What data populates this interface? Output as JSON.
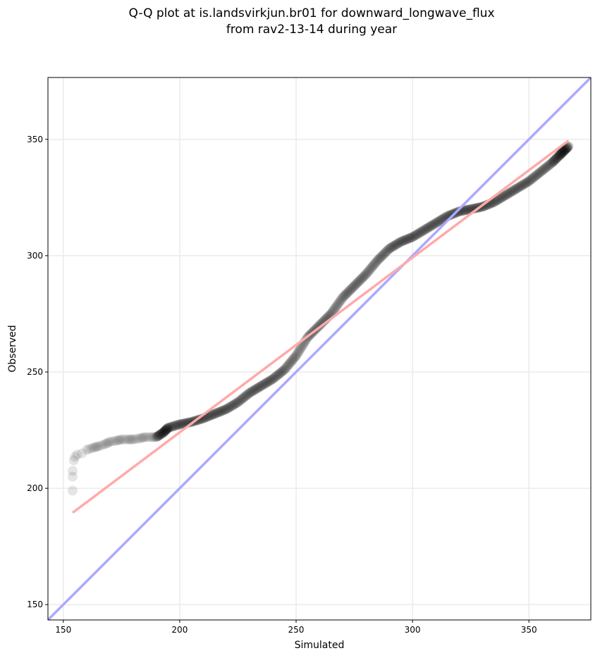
{
  "chart_data": {
    "type": "scatter",
    "title_line1": "Q-Q plot at is.landsvirkjun.br01 for downward_longwave_flux",
    "title_line2": "from rav2-13-14 during year",
    "xlabel": "Simulated",
    "ylabel": "Observed",
    "xlim": [
      143.4,
      376.6
    ],
    "ylim": [
      143.4,
      376.6
    ],
    "xticks": [
      150,
      200,
      250,
      300,
      350
    ],
    "yticks": [
      150,
      200,
      250,
      300,
      350
    ],
    "grid": true,
    "points": {
      "color": "#000000",
      "alpha": 0.1,
      "x": [
        154,
        154,
        154,
        154.5,
        155,
        156,
        158,
        160,
        163,
        165,
        168,
        170,
        173,
        175,
        178,
        180,
        183,
        185,
        188,
        190,
        193,
        195,
        200,
        205,
        210,
        215,
        220,
        225,
        230,
        235,
        240,
        245,
        250,
        255,
        260,
        265,
        270,
        275,
        280,
        285,
        290,
        295,
        300,
        305,
        310,
        315,
        320,
        325,
        330,
        335,
        340,
        345,
        350,
        355,
        360,
        363,
        365,
        367
      ],
      "y": [
        199,
        205,
        207.5,
        212,
        213.5,
        214.5,
        215,
        216.5,
        217.5,
        218,
        219,
        220,
        220.5,
        221,
        221,
        221,
        221.5,
        222,
        222,
        222,
        224,
        226,
        227.5,
        228.5,
        230,
        232,
        234,
        237,
        241,
        244,
        247,
        251,
        257,
        265,
        270,
        275,
        282,
        287,
        292,
        298,
        303,
        306,
        308,
        311,
        314,
        317,
        319,
        320,
        321,
        323,
        326,
        329,
        332,
        336,
        340,
        343,
        345,
        347
      ]
    },
    "reference_line": {
      "name": "1:1 line",
      "color": "#aaaaff",
      "x": [
        143.4,
        376.6
      ],
      "y": [
        143.4,
        376.6
      ]
    },
    "fit_line": {
      "name": "fit",
      "color": "#ffaaaa",
      "x": [
        154,
        367
      ],
      "y": [
        189.5,
        349.5
      ]
    }
  }
}
